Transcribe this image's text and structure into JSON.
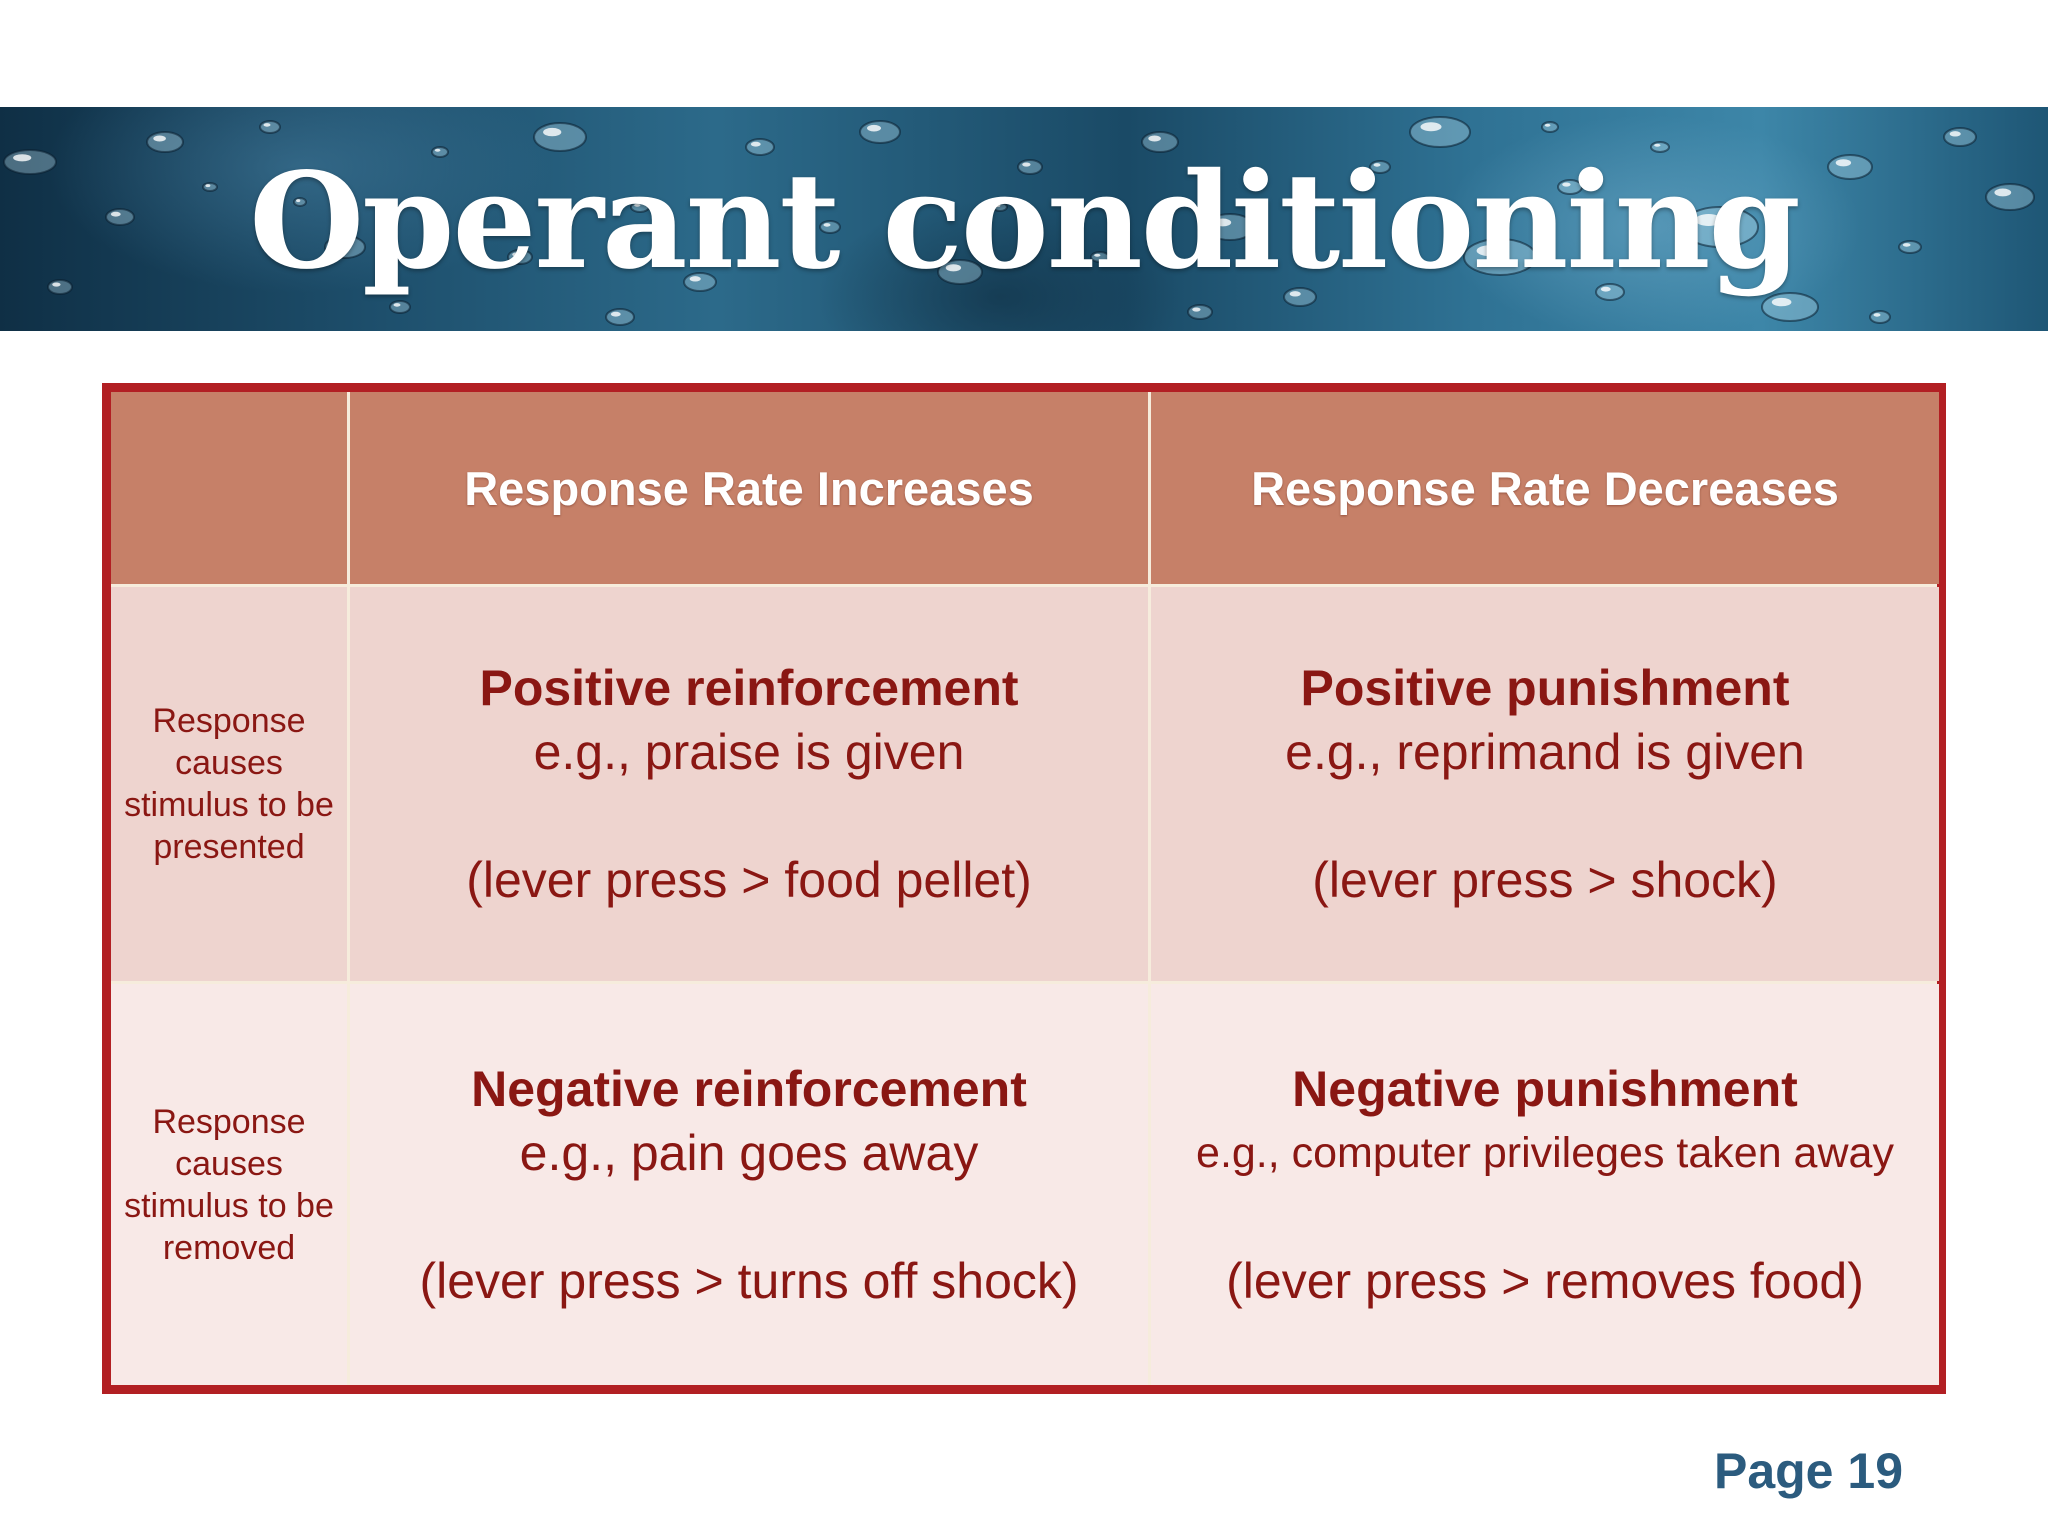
{
  "slide": {
    "title": "Operant conditioning",
    "page_label": "Page 19"
  },
  "table": {
    "corner": "",
    "columns": [
      "Response Rate Increases",
      "Response Rate Decreases"
    ],
    "rows": [
      {
        "label": "Response causes stimulus to be presented",
        "cells": [
          {
            "term": "Positive reinforcement",
            "example": "e.g., praise is given",
            "detail": "(lever press > food pellet)"
          },
          {
            "term": "Positive punishment",
            "example": "e.g., reprimand is given",
            "detail": "(lever press > shock)"
          }
        ]
      },
      {
        "label": "Response causes stimulus to be removed",
        "cells": [
          {
            "term": "Negative reinforcement",
            "example": "e.g., pain goes away",
            "detail": "(lever press > turns off shock)"
          },
          {
            "term": "Negative punishment",
            "example": "e.g., computer privileges taken away",
            "detail": "(lever press > removes food)"
          }
        ]
      }
    ]
  },
  "colors": {
    "frame": "#b21f23",
    "header": "#c68068",
    "row_1": "#eed4cf",
    "row_2": "#f8e9e7",
    "text": "#8a1713",
    "page_number": "#2b5b7e"
  },
  "decoration": {
    "banner_background": "water-droplets"
  }
}
